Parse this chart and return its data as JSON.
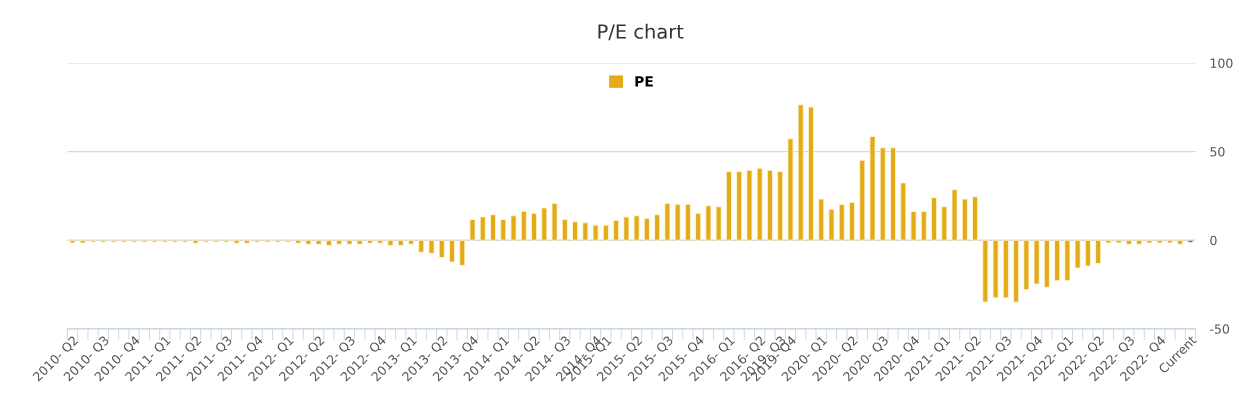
{
  "chart_data": {
    "type": "bar",
    "title": "P/E chart",
    "categories": [
      "2010- Q2",
      null,
      null,
      "2010- Q3",
      null,
      null,
      "2010- Q4",
      null,
      null,
      "2011- Q1",
      null,
      null,
      "2011- Q2",
      null,
      null,
      "2011- Q3",
      null,
      null,
      "2011- Q4",
      null,
      null,
      "2012- Q1",
      null,
      null,
      "2012- Q2",
      null,
      null,
      "2012- Q3",
      null,
      null,
      "2012- Q4",
      null,
      null,
      "2013- Q1",
      null,
      null,
      "2013- Q2",
      null,
      null,
      "2013- Q4",
      null,
      null,
      "2014- Q1",
      null,
      null,
      "2014- Q2",
      null,
      null,
      "2014- Q3",
      null,
      null,
      "2014- Q4",
      "2015- Q1",
      null,
      null,
      "2015- Q2",
      null,
      null,
      "2015- Q3",
      null,
      null,
      "2015- Q4",
      null,
      null,
      "2016- Q1",
      null,
      null,
      "2016- Q2",
      null,
      "2019- Q3",
      "2019- Q4",
      null,
      null,
      "2020- Q1",
      null,
      null,
      "2020- Q2",
      null,
      null,
      "2020- Q3",
      null,
      null,
      "2020- Q4",
      null,
      null,
      "2021- Q1",
      null,
      null,
      "2021- Q2",
      null,
      null,
      "2021- Q3",
      null,
      null,
      "2021- Q4",
      null,
      null,
      "2022- Q1",
      null,
      null,
      "2022- Q2",
      null,
      null,
      "2022- Q3",
      null,
      null,
      "2022- Q4",
      null,
      null,
      "Current"
    ],
    "series": [
      {
        "name": "PE",
        "color": "#e3ac17",
        "values": [
          -1.5,
          -1.5,
          -1,
          -1,
          -1,
          -1,
          -1,
          -1,
          -1,
          -1,
          -1,
          -1,
          -1.7,
          -1,
          -1,
          -1,
          -1.7,
          -1.7,
          -1,
          -1,
          -1,
          -1,
          -1.7,
          -2.3,
          -2.3,
          -3,
          -2.3,
          -2.3,
          -2.3,
          -1.7,
          -1.7,
          -3,
          -3,
          -2.3,
          -6.8,
          -7.4,
          -9.8,
          -12.3,
          -14.2,
          11.7,
          13.1,
          14.4,
          11.7,
          13.8,
          16.3,
          15.2,
          18.2,
          20.8,
          11.7,
          10.4,
          9.8,
          8.5,
          8.5,
          11.2,
          13.1,
          13.8,
          12.3,
          14.4,
          20.8,
          20.3,
          20.3,
          15.2,
          19.5,
          18.9,
          38.7,
          38.7,
          39.4,
          40.6,
          39.4,
          38.7,
          57.2,
          76.4,
          75.1,
          23.2,
          17.5,
          20.2,
          21.3,
          45.1,
          58.5,
          52.1,
          52.1,
          32.3,
          16.2,
          16.2,
          24.0,
          18.9,
          28.5,
          23.2,
          24.5,
          -34.9,
          -32.5,
          -32.5,
          -34.9,
          -27.9,
          -24.7,
          -26.6,
          -22.8,
          -22.8,
          -15.7,
          -14.5,
          -13.2,
          -1.5,
          -1.5,
          -2.3,
          -2.3,
          -1.5,
          -1.5,
          -1.5,
          -2.3,
          -1.3
        ],
        "colors": [
          "#e3ac17",
          "#e3ac17",
          "#e3ac17",
          "#e3ac17",
          "#e3ac17",
          "#e3ac17",
          "#e3ac17",
          "#e3ac17",
          "#e3ac17",
          "#e3ac17",
          "#e3ac17",
          "#e3ac17",
          "#e3ac17",
          "#e3ac17",
          "#e3ac17",
          "#e3ac17",
          "#e3ac17",
          "#e3ac17",
          "#e3ac17",
          "#e3ac17",
          "#e3ac17",
          "#e3ac17",
          "#e3ac17",
          "#e3ac17",
          "#e3ac17",
          "#e3ac17",
          "#e3ac17",
          "#e3ac17",
          "#e3ac17",
          "#e3ac17",
          "#e3ac17",
          "#e3ac17",
          "#e3ac17",
          "#e3ac17",
          "#e3ac17",
          "#e3ac17",
          "#e3ac17",
          "#e3ac17",
          "#e3ac17",
          "#e3ac17",
          "#e3ac17",
          "#e3ac17",
          "#e3ac17",
          "#e3ac17",
          "#e3ac17",
          "#e3ac17",
          "#e3ac17",
          "#e3ac17",
          "#e3ac17",
          "#e3ac17",
          "#e3ac17",
          "#e3ac17",
          "#e3ac17",
          "#e3ac17",
          "#e3ac17",
          "#e3ac17",
          "#e3ac17",
          "#e3ac17",
          "#e3ac17",
          "#e3ac17",
          "#e3ac17",
          "#e3ac17",
          "#e3ac17",
          "#e3ac17",
          "#e3ac17",
          "#e3ac17",
          "#e3ac17",
          "#e3ac17",
          "#e3ac17",
          "#e3ac17",
          "#e3ac17",
          "#e3ac17",
          "#e3ac17",
          "#e3ac17",
          "#e3ac17",
          "#e3ac17",
          "#e3ac17",
          "#e3ac17",
          "#e3ac17",
          "#e3ac17",
          "#e3ac17",
          "#e3ac17",
          "#e3ac17",
          "#e3ac17",
          "#e3ac17",
          "#e3ac17",
          "#e3ac17",
          "#e3ac17",
          "#e3ac17",
          "#e3ac17",
          "#e3ac17",
          "#e3ac17",
          "#e3ac17",
          "#e3ac17",
          "#e3ac17",
          "#e3ac17",
          "#e3ac17",
          "#e3ac17",
          "#e3ac17",
          "#e3ac17",
          "#e3ac17",
          "#e3ac17",
          "#e3ac17",
          "#e3ac17",
          "#e3ac17",
          "#e3ac17",
          "#e3ac17",
          "#e3ac17",
          "#e3ac17",
          "#2a7ab8"
        ]
      }
    ],
    "ylim": [
      -50,
      100
    ],
    "yticks": [
      -50,
      0,
      50,
      100
    ],
    "grid": "y",
    "legend": "top"
  }
}
